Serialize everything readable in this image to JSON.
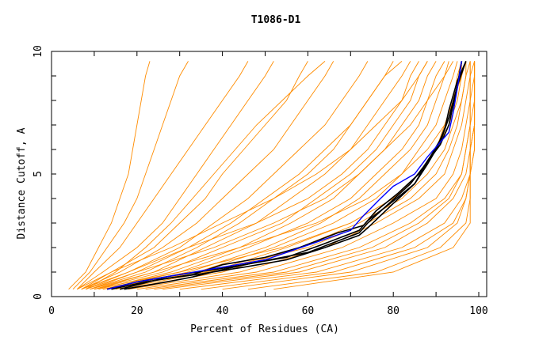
{
  "chart_data": {
    "type": "line",
    "title": "T1086-D1",
    "xlabel": "Percent of Residues (CA)",
    "ylabel": "Distance Cutoff, A",
    "xlim": [
      0,
      100
    ],
    "ylim": [
      0,
      10
    ],
    "x_ticks": [
      0,
      20,
      40,
      60,
      80,
      100
    ],
    "x_minor_ticks": [
      10,
      30,
      50,
      70,
      90
    ],
    "y_ticks": [
      0,
      5,
      10
    ],
    "y_minor_ticks": [
      1,
      2,
      3,
      4,
      6,
      7,
      8,
      9
    ],
    "grid": false,
    "legend": "none",
    "colors": {
      "models": "#ff8c00",
      "highlight_black": "#000000",
      "highlight_blue": "#0000ff"
    },
    "y_levels": [
      0.3,
      1,
      2,
      3,
      4,
      5,
      6,
      7,
      8,
      9,
      9.6
    ],
    "orange_series_x": [
      [
        4,
        8,
        11,
        14,
        16,
        18,
        19,
        20,
        21,
        22,
        23
      ],
      [
        5,
        9,
        13,
        17,
        20,
        22,
        24,
        26,
        28,
        30,
        32
      ],
      [
        6,
        10,
        16,
        20,
        24,
        28,
        32,
        36,
        40,
        44,
        46
      ],
      [
        6,
        12,
        20,
        26,
        30,
        34,
        38,
        42,
        46,
        50,
        52
      ],
      [
        7,
        14,
        24,
        30,
        36,
        40,
        45,
        50,
        55,
        58,
        60
      ],
      [
        8,
        15,
        22,
        28,
        33,
        38,
        43,
        48,
        54,
        60,
        64
      ],
      [
        7,
        16,
        26,
        34,
        40,
        46,
        52,
        56,
        60,
        64,
        66
      ],
      [
        8,
        18,
        30,
        38,
        46,
        52,
        58,
        64,
        68,
        72,
        74
      ],
      [
        9,
        20,
        32,
        42,
        50,
        58,
        64,
        70,
        74,
        78,
        80
      ],
      [
        9,
        22,
        34,
        44,
        52,
        60,
        66,
        70,
        74,
        78,
        82
      ],
      [
        10,
        24,
        36,
        48,
        56,
        64,
        70,
        74,
        78,
        82,
        84
      ],
      [
        10,
        26,
        40,
        54,
        62,
        70,
        76,
        80,
        84,
        86,
        88
      ],
      [
        11,
        28,
        44,
        56,
        66,
        72,
        78,
        82,
        86,
        88,
        90
      ],
      [
        12,
        30,
        46,
        60,
        70,
        76,
        82,
        86,
        88,
        90,
        92
      ],
      [
        13,
        32,
        50,
        63,
        72,
        78,
        84,
        88,
        90,
        92,
        93
      ],
      [
        14,
        34,
        52,
        66,
        76,
        82,
        86,
        90,
        92,
        94,
        95
      ],
      [
        15,
        37,
        55,
        70,
        80,
        86,
        90,
        92,
        94,
        96,
        96
      ],
      [
        16,
        40,
        58,
        72,
        82,
        88,
        92,
        94,
        96,
        97,
        97
      ],
      [
        18,
        44,
        64,
        76,
        86,
        92,
        94,
        96,
        97,
        98,
        98
      ],
      [
        20,
        48,
        68,
        80,
        90,
        94,
        96,
        97,
        98,
        98,
        98
      ],
      [
        22,
        52,
        72,
        84,
        92,
        96,
        97,
        98,
        98,
        98,
        99
      ],
      [
        24,
        55,
        75,
        86,
        93,
        96,
        97,
        98,
        98,
        99,
        99
      ],
      [
        26,
        58,
        78,
        88,
        94,
        97,
        98,
        98,
        99,
        99,
        99
      ],
      [
        30,
        62,
        82,
        92,
        96,
        98,
        98,
        99,
        99,
        99,
        99
      ],
      [
        35,
        66,
        85,
        94,
        97,
        98,
        98,
        99,
        99,
        99,
        99
      ],
      [
        40,
        70,
        88,
        95,
        97,
        98,
        98,
        99,
        99,
        99,
        99
      ],
      [
        46,
        76,
        91,
        97,
        98,
        98,
        99,
        99,
        99,
        99,
        99
      ],
      [
        52,
        80,
        94,
        98,
        98,
        98,
        99,
        99,
        99,
        99,
        99
      ],
      [
        8,
        20,
        38,
        52,
        64,
        72,
        78,
        84,
        88,
        92,
        94
      ],
      [
        10,
        30,
        54,
        70,
        80,
        86,
        90,
        93,
        95,
        96,
        97
      ],
      [
        12,
        36,
        60,
        74,
        84,
        90,
        93,
        95,
        96,
        97,
        98
      ],
      [
        6,
        14,
        28,
        40,
        52,
        62,
        70,
        76,
        82,
        86,
        88
      ],
      [
        7,
        18,
        32,
        48,
        60,
        68,
        74,
        78,
        82,
        84,
        86
      ],
      [
        9,
        24,
        44,
        62,
        74,
        82,
        88,
        92,
        94,
        95,
        96
      ]
    ],
    "black_series": [
      {
        "x": [
          13,
          20,
          30,
          38,
          45,
          55,
          63,
          72,
          74,
          80,
          85,
          88,
          91,
          93,
          94,
          95,
          96
        ],
        "y": [
          0.3,
          0.6,
          0.9,
          1.1,
          1.3,
          1.6,
          2.1,
          2.7,
          3.1,
          3.9,
          4.6,
          5.5,
          6.2,
          7.0,
          7.8,
          8.6,
          9.6
        ]
      },
      {
        "x": [
          14,
          22,
          33,
          40,
          50,
          58,
          67,
          73,
          76,
          81,
          86,
          89,
          91,
          92,
          93,
          95,
          97
        ],
        "y": [
          0.3,
          0.6,
          0.9,
          1.3,
          1.6,
          2.0,
          2.6,
          2.9,
          3.5,
          4.2,
          5.0,
          5.8,
          6.3,
          6.8,
          7.6,
          8.8,
          9.6
        ]
      },
      {
        "x": [
          16,
          25,
          34,
          45,
          55,
          64,
          72,
          74,
          80,
          85,
          88,
          90,
          92,
          94,
          95,
          96
        ],
        "y": [
          0.3,
          0.7,
          0.9,
          1.2,
          1.5,
          2.0,
          2.5,
          2.8,
          3.8,
          4.6,
          5.4,
          6.0,
          6.8,
          7.8,
          8.6,
          9.6
        ]
      },
      {
        "x": [
          17,
          27,
          33,
          40,
          48,
          60,
          66,
          72,
          74,
          79,
          84,
          88,
          91,
          93,
          95,
          97
        ],
        "y": [
          0.3,
          0.6,
          0.8,
          1.1,
          1.4,
          1.8,
          2.2,
          2.6,
          3.0,
          3.8,
          4.6,
          5.5,
          6.4,
          7.3,
          8.6,
          9.6
        ]
      }
    ],
    "blue_series": {
      "x": [
        13,
        20,
        30,
        40,
        50,
        55,
        65,
        70,
        73,
        77,
        80,
        85,
        88,
        90,
        93,
        94,
        95,
        96
      ],
      "y": [
        0.3,
        0.6,
        0.9,
        1.2,
        1.5,
        1.8,
        2.4,
        2.7,
        3.3,
        4.0,
        4.5,
        5.0,
        5.7,
        6.1,
        6.7,
        7.5,
        8.5,
        9.6
      ]
    }
  }
}
